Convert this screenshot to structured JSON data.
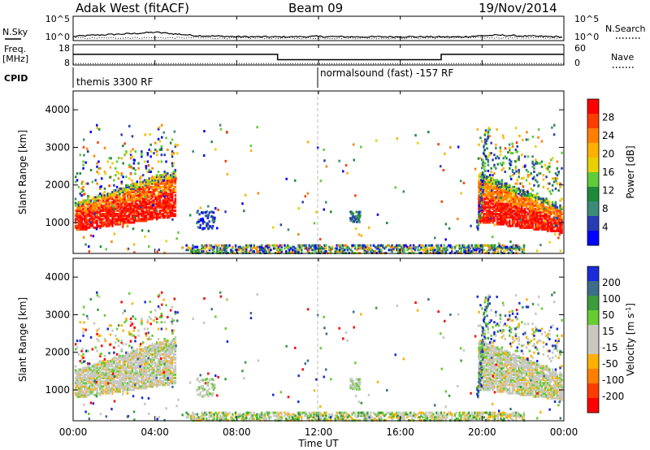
{
  "header": {
    "radar_title": "Adak West (fitACF)",
    "beam": "Beam 09",
    "date": "19/Nov/2014"
  },
  "chart_data": [
    {
      "type": "line",
      "name": "noise-panel",
      "left_label": "N.Sky",
      "right_label": "N.Search",
      "left_ticks": [
        "10^5",
        "10^0"
      ],
      "right_ticks": [
        "10^5",
        "10^0"
      ],
      "series_sky": {
        "x_hours": [
          0,
          1,
          2,
          3,
          4,
          5,
          6,
          8,
          10,
          12,
          14,
          16,
          18,
          19,
          20,
          21,
          22,
          23,
          24
        ],
        "log_values": [
          0.6,
          0.9,
          1.1,
          1.3,
          1.6,
          1.2,
          0.8,
          0.55,
          0.5,
          0.6,
          0.5,
          0.55,
          0.5,
          0.5,
          0.8,
          0.9,
          0.7,
          0.6,
          0.5
        ]
      },
      "series_search": {
        "x_hours": [
          0,
          4,
          8,
          12,
          16,
          20,
          24
        ],
        "log_values": [
          0.2,
          0.3,
          0.2,
          0.2,
          0.2,
          0.3,
          0.25
        ]
      }
    },
    {
      "type": "line",
      "name": "frequency-panel",
      "left_label_1": "Freq.",
      "left_label_2": "[MHz]",
      "right_label": "Nave",
      "left_ticks": [
        "18",
        "8"
      ],
      "right_ticks": [
        "60",
        "0"
      ],
      "freq_steps": [
        {
          "from": 0,
          "to": 10,
          "mhz": 13.5
        },
        {
          "from": 10,
          "to": 18,
          "mhz": 10.5
        },
        {
          "from": 18,
          "to": 24,
          "mhz": 13.5
        }
      ],
      "nave": 2
    },
    {
      "type": "table",
      "name": "cpid-bar",
      "label": "CPID",
      "segments": [
        {
          "start_hour": 0,
          "text": "themis 3300 RF"
        },
        {
          "start_hour": 12,
          "text": "normalsound (fast) -157 RF"
        }
      ]
    },
    {
      "type": "heatmap",
      "name": "power-panel",
      "ylabel": "Slant Range [km]",
      "ylim": [
        180,
        4500
      ],
      "yticks": [
        1000,
        2000,
        3000,
        4000
      ],
      "xlim": [
        0,
        24
      ],
      "colorbar": {
        "label": "Power [dB]",
        "ticks": [
          "28",
          "24",
          "20",
          "16",
          "12",
          "8",
          "4"
        ],
        "colors": [
          "#ff0000",
          "#ff3c00",
          "#ff8000",
          "#ffb000",
          "#e8d000",
          "#5fcc3a",
          "#1f8a3a",
          "#3c8a78",
          "#283cb4",
          "#0000ff"
        ]
      },
      "regions": [
        {
          "t0": 0,
          "t1": 5.0,
          "r_lo": 750,
          "r_hi": 2500,
          "kind": "arc_left"
        },
        {
          "t0": 19.8,
          "t1": 24,
          "r_lo": 700,
          "r_hi": 2600,
          "kind": "arc_right"
        },
        {
          "t0": 6,
          "t1": 22,
          "r_lo": 180,
          "r_hi": 380,
          "kind": "ground"
        }
      ]
    },
    {
      "type": "heatmap",
      "name": "velocity-panel",
      "ylabel": "Slant Range [km]",
      "ylim": [
        180,
        4500
      ],
      "yticks": [
        1000,
        2000,
        3000,
        4000
      ],
      "xlim": [
        0,
        24
      ],
      "colorbar": {
        "label": "Velocity [m s^-1]",
        "ticks": [
          "200",
          "100",
          "50",
          "15",
          "-15",
          "-50",
          "-100",
          "-200"
        ],
        "colors": [
          "#1a2cd8",
          "#3c6e8a",
          "#3a9c3a",
          "#66cc33",
          "#c8c8c0",
          "#c8c8c0",
          "#ffb000",
          "#ff8000",
          "#ff3c00",
          "#ff0000"
        ]
      }
    }
  ],
  "xaxis": {
    "ticks": [
      "00:00",
      "04:00",
      "08:00",
      "12:00",
      "16:00",
      "20:00",
      "00:00"
    ],
    "label": "Time UT"
  }
}
